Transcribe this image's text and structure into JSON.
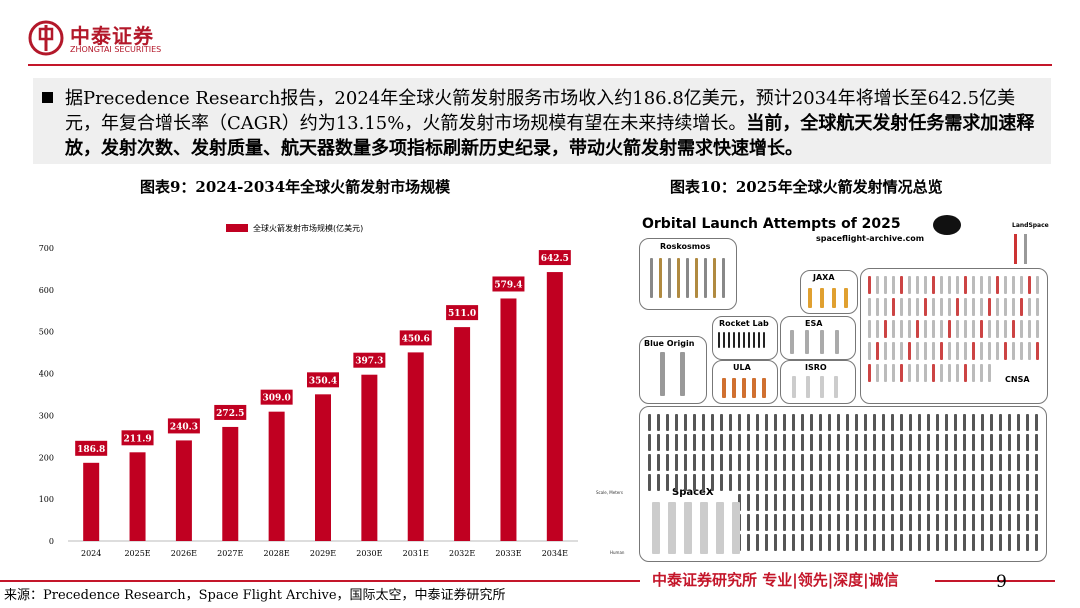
{
  "header": {
    "logo_cn": "中泰证券",
    "logo_en": "ZHONGTAI SECURITIES"
  },
  "summary": {
    "normal_text": "据Precedence Research报告，2024年全球火箭发射服务市场收入约186.8亿美元，预计2034年将增长至642.5亿美元，年复合增长率（CAGR）约为13.15%，火箭发射市场规模有望在未来持续增长。",
    "bold_text": "当前，全球航天发射任务需求加速释放，发射次数、发射质量、航天器数量多项指标刷新历史纪录，带动火箭发射需求快速增长。"
  },
  "figures": {
    "left_title": "图表9：2024-2034年全球火箭发射市场规模",
    "right_title": "图表10：2025年全球火箭发射情况总览"
  },
  "chart_data": {
    "type": "bar",
    "categories": [
      "2024",
      "2025E",
      "2026E",
      "2027E",
      "2028E",
      "2029E",
      "2030E",
      "2031E",
      "2032E",
      "2033E",
      "2034E"
    ],
    "series": [
      {
        "name": "全球火箭发射市场规模(亿美元)",
        "values": [
          186.8,
          211.9,
          240.3,
          272.5,
          309.0,
          350.4,
          397.3,
          450.6,
          511.0,
          579.4,
          642.5
        ]
      }
    ],
    "value_labels": [
      "186.8",
      "211.9",
      "240.3",
      "272.5",
      "309.0",
      "350.4",
      "397.3",
      "450.6",
      "511.0",
      "579.4",
      "642.5"
    ],
    "yticks": [
      0,
      100,
      200,
      300,
      400,
      500,
      600,
      700
    ],
    "ylim": [
      0,
      700
    ],
    "legend_position": "top",
    "grid": false,
    "bar_color": "#c00021"
  },
  "infographic": {
    "title": "Orbital Launch Attempts of 2025",
    "subtitle": "spaceflight-archive.com",
    "panels": [
      "Roskosmos",
      "JAXA",
      "Rocket Lab",
      "ESA",
      "Blue Origin",
      "ULA",
      "ISRO",
      "CNSA",
      "SpaceX",
      "LandSpace"
    ],
    "small_labels": [
      "Scale, Meters",
      "Human"
    ]
  },
  "footer": {
    "brand": "中泰证券研究所 专业|领先|深度|诚信",
    "page": "9",
    "source": "来源：Precedence Research，Space Flight Archive，国际太空，中泰证券研究所"
  }
}
